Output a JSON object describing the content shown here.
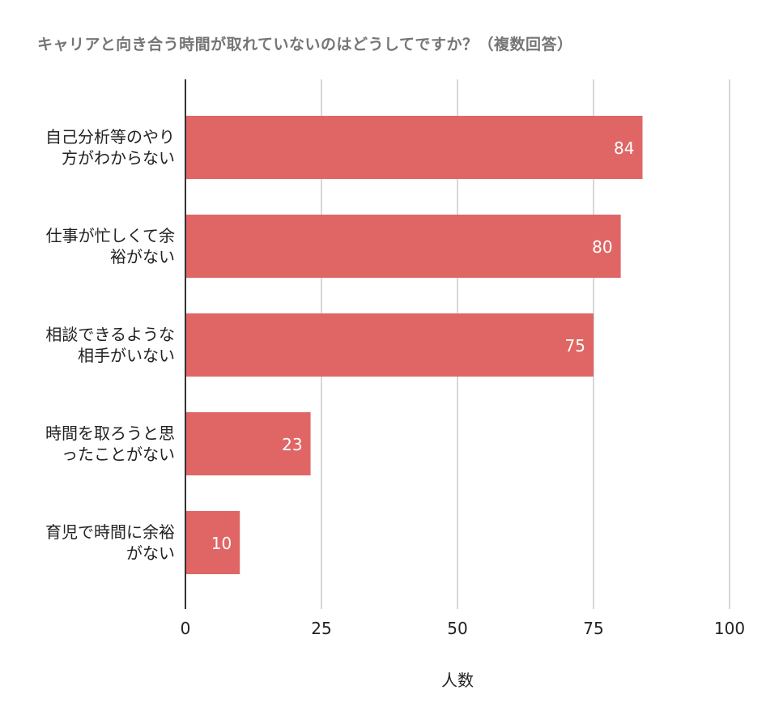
{
  "chart_data": {
    "type": "bar",
    "orientation": "horizontal",
    "title": "キャリアと向き合う時間が取れていないのはどうしてですか？（複数回答）",
    "categories": [
      "自己分析等のやり方がわからない",
      "仕事が忙しくて余裕がない",
      "相談できるような相手がいない",
      "時間を取ろうと思ったことがない",
      "育児で時間に余裕がない"
    ],
    "values": [
      84,
      80,
      75,
      23,
      10
    ],
    "xlabel": "人数",
    "ylabel": "",
    "xlim": [
      0,
      100
    ],
    "xticks": [
      "0",
      "25",
      "50",
      "75",
      "100"
    ],
    "grid": true,
    "data_labels": true,
    "colors": {
      "bar": "#e06666",
      "grid": "#cccccc",
      "axis": "#333333",
      "title": "#757575"
    }
  }
}
